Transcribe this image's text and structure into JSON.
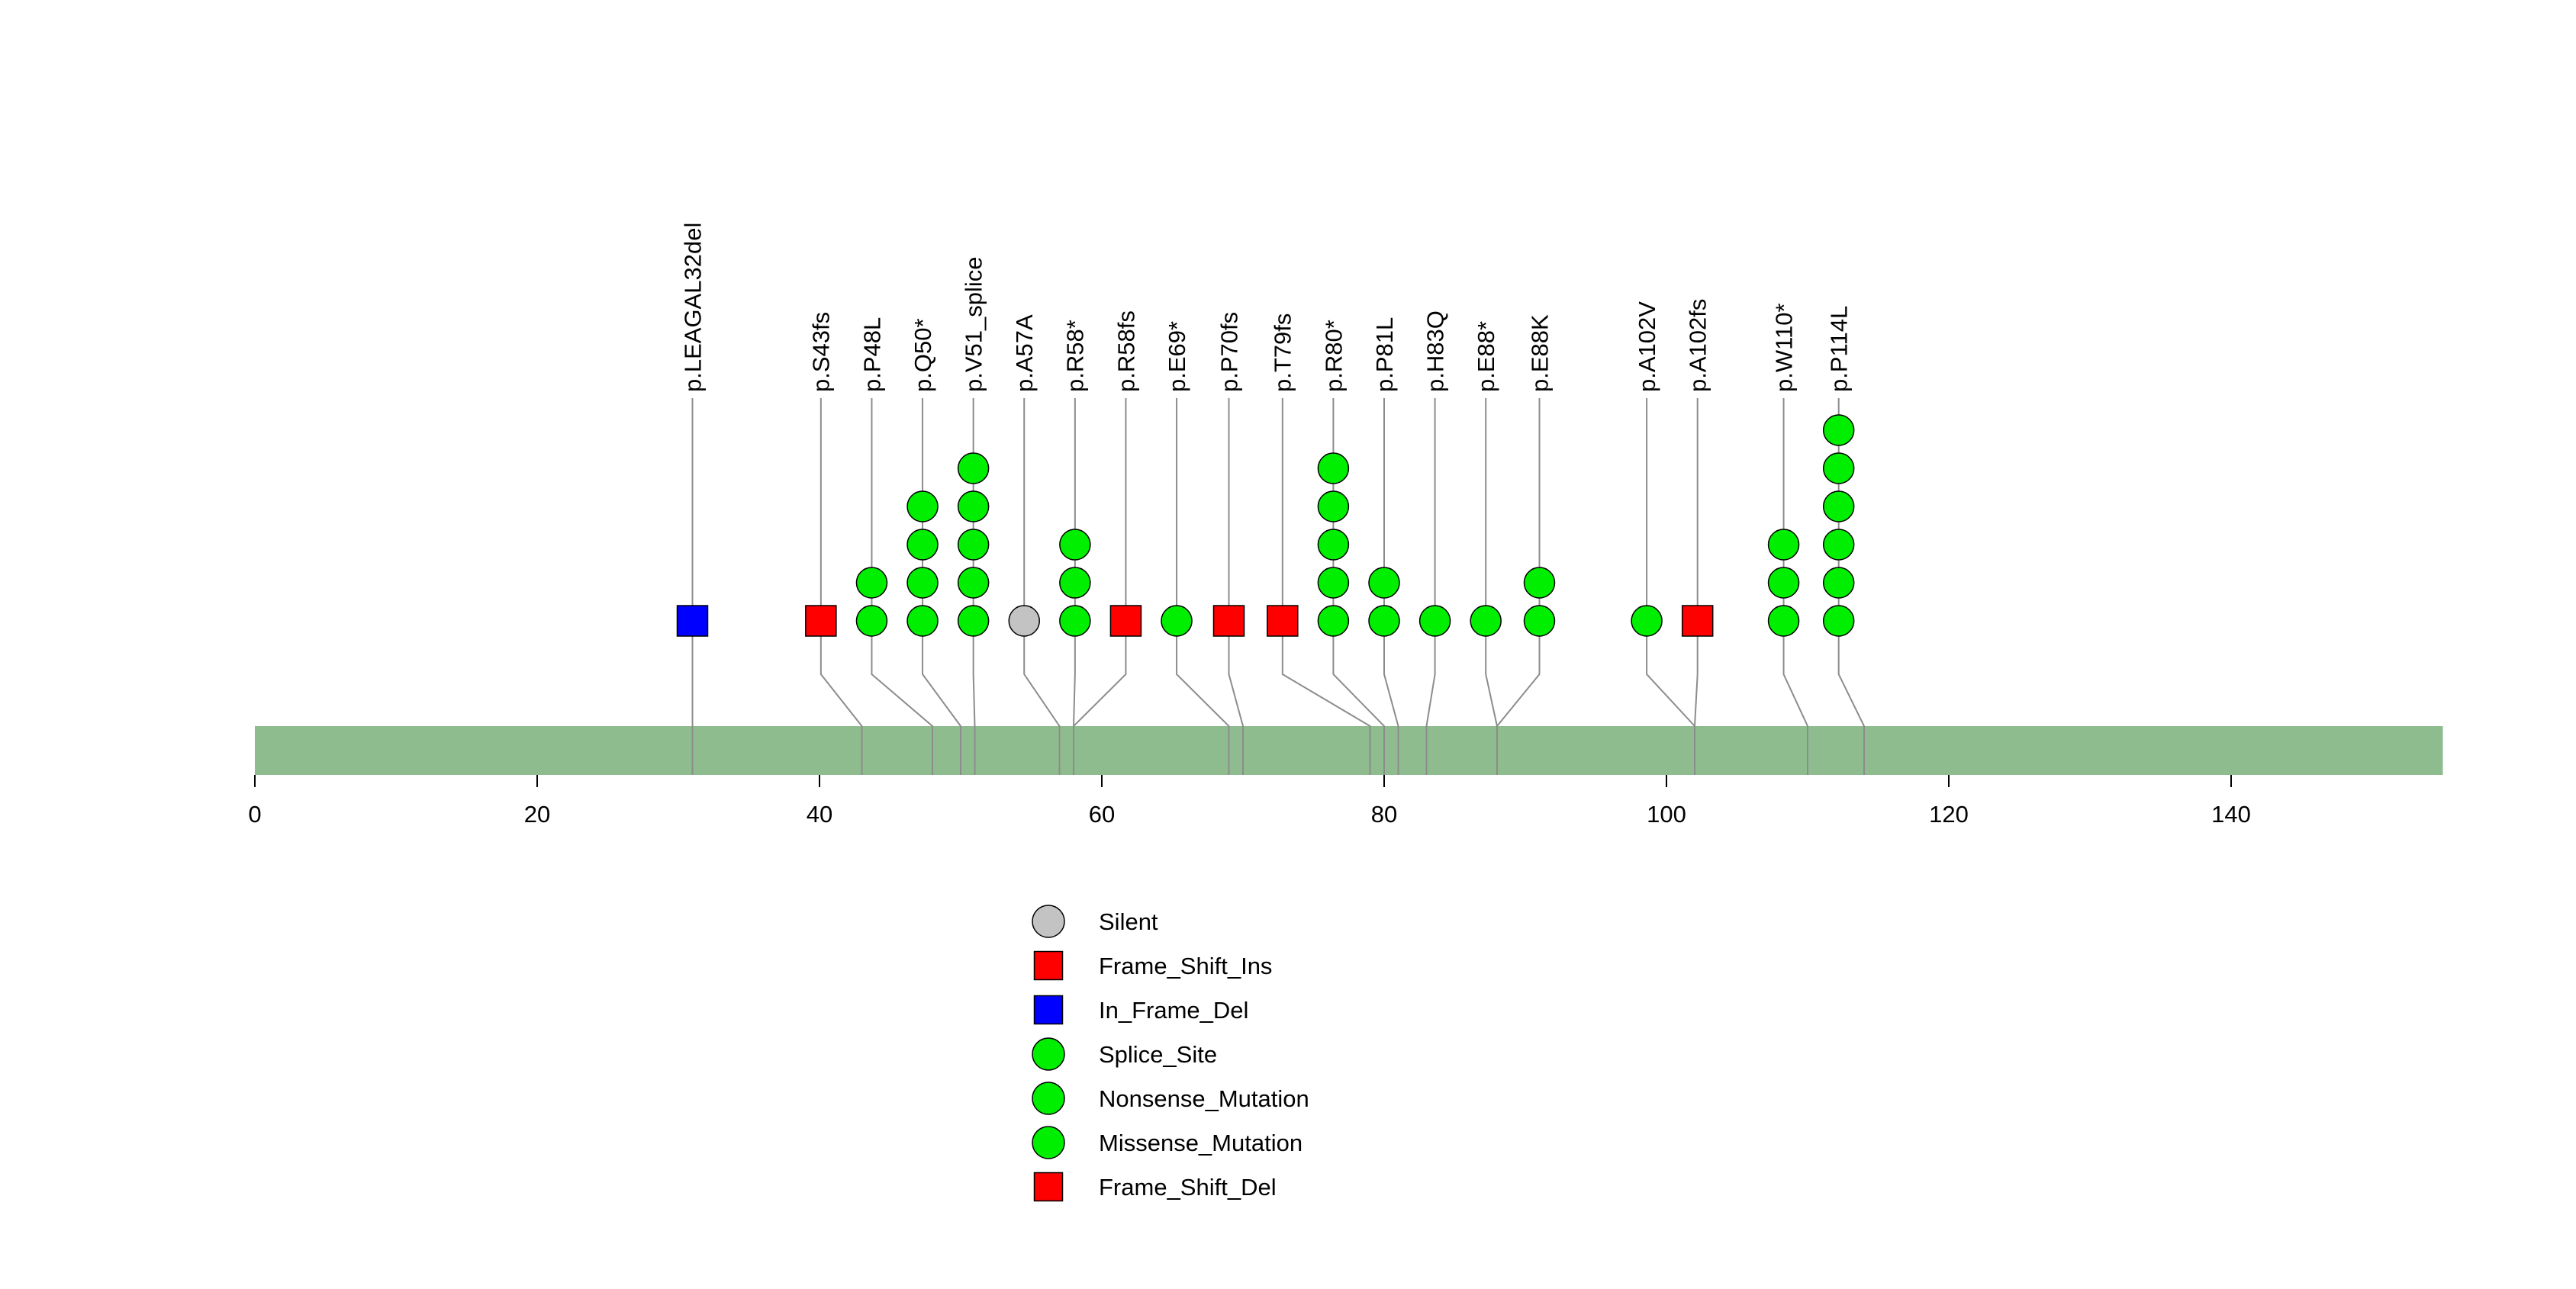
{
  "chart_data": {
    "type": "lollipop",
    "title": "",
    "xlabel": "",
    "ylabel": "",
    "xlim": [
      0,
      155
    ],
    "axis_ticks": [
      0,
      20,
      40,
      60,
      80,
      100,
      120,
      140
    ],
    "grid": false,
    "legend_position": "bottom-center",
    "colors": {
      "protein_bar": "#8FBC8F",
      "stem": "#8C8C8C",
      "marker_outline": "#000000",
      "silent": "#C3C3C3",
      "frame_shift": "#FF0000",
      "in_frame_del": "#0000FF",
      "green_mutation": "#00EE00"
    },
    "marker_styles": {
      "Silent": {
        "shape": "circle",
        "color": "#C3C3C3"
      },
      "Frame_Shift_Ins": {
        "shape": "square",
        "color": "#FF0000"
      },
      "In_Frame_Del": {
        "shape": "square",
        "color": "#0000FF"
      },
      "Splice_Site": {
        "shape": "circle",
        "color": "#00EE00"
      },
      "Nonsense_Mutation": {
        "shape": "circle",
        "color": "#00EE00"
      },
      "Missense_Mutation": {
        "shape": "circle",
        "color": "#00EE00"
      },
      "Frame_Shift_Del": {
        "shape": "square",
        "color": "#FF0000"
      }
    },
    "mutations": [
      {
        "label": "p.LEAGAL32del",
        "position": 31,
        "display_x": 31.0,
        "count": 1,
        "type": "In_Frame_Del"
      },
      {
        "label": "p.S43fs",
        "position": 43,
        "display_x": 40.1,
        "count": 1,
        "type": "Frame_Shift_Ins"
      },
      {
        "label": "p.P48L",
        "position": 48,
        "display_x": 43.7,
        "count": 2,
        "type": "Missense_Mutation"
      },
      {
        "label": "p.Q50*",
        "position": 50,
        "display_x": 47.3,
        "count": 4,
        "type": "Nonsense_Mutation"
      },
      {
        "label": "p.V51_splice",
        "position": 51,
        "display_x": 50.9,
        "count": 5,
        "type": "Splice_Site"
      },
      {
        "label": "p.A57A",
        "position": 57,
        "display_x": 54.5,
        "count": 1,
        "type": "Silent"
      },
      {
        "label": "p.R58*",
        "position": 58,
        "display_x": 58.1,
        "count": 3,
        "type": "Nonsense_Mutation"
      },
      {
        "label": "p.R58fs",
        "position": 58,
        "display_x": 61.7,
        "count": 1,
        "type": "Frame_Shift_Del"
      },
      {
        "label": "p.E69*",
        "position": 69,
        "display_x": 65.3,
        "count": 1,
        "type": "Nonsense_Mutation"
      },
      {
        "label": "p.P70fs",
        "position": 70,
        "display_x": 69.0,
        "count": 1,
        "type": "Frame_Shift_Del"
      },
      {
        "label": "p.T79fs",
        "position": 79,
        "display_x": 72.8,
        "count": 1,
        "type": "Frame_Shift_Del"
      },
      {
        "label": "p.R80*",
        "position": 80,
        "display_x": 76.4,
        "count": 5,
        "type": "Nonsense_Mutation"
      },
      {
        "label": "p.P81L",
        "position": 81,
        "display_x": 80.0,
        "count": 2,
        "type": "Missense_Mutation"
      },
      {
        "label": "p.H83Q",
        "position": 83,
        "display_x": 83.6,
        "count": 1,
        "type": "Missense_Mutation"
      },
      {
        "label": "p.E88*",
        "position": 88,
        "display_x": 87.2,
        "count": 1,
        "type": "Nonsense_Mutation"
      },
      {
        "label": "p.E88K",
        "position": 88,
        "display_x": 91.0,
        "count": 2,
        "type": "Missense_Mutation"
      },
      {
        "label": "p.A102V",
        "position": 102,
        "display_x": 98.6,
        "count": 1,
        "type": "Missense_Mutation"
      },
      {
        "label": "p.A102fs",
        "position": 102,
        "display_x": 102.2,
        "count": 1,
        "type": "Frame_Shift_Ins"
      },
      {
        "label": "p.W110*",
        "position": 110,
        "display_x": 108.3,
        "count": 3,
        "type": "Nonsense_Mutation"
      },
      {
        "label": "p.P114L",
        "position": 114,
        "display_x": 112.2,
        "count": 6,
        "type": "Missense_Mutation"
      }
    ],
    "legend": [
      "Silent",
      "Frame_Shift_Ins",
      "In_Frame_Del",
      "Splice_Site",
      "Nonsense_Mutation",
      "Missense_Mutation",
      "Frame_Shift_Del"
    ]
  }
}
